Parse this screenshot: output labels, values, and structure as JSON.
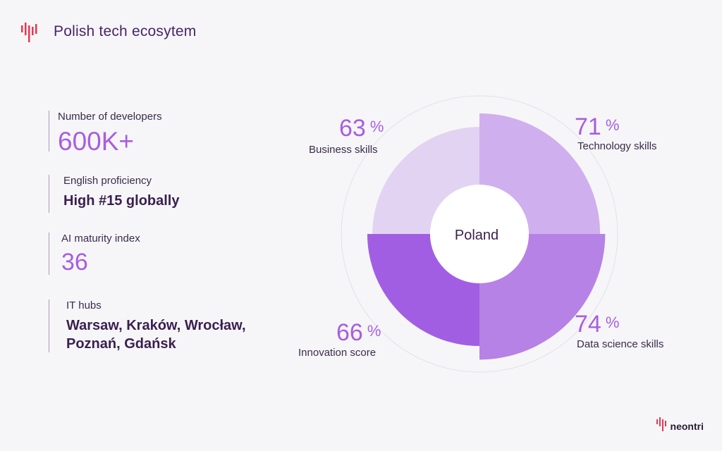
{
  "header": {
    "title": "Polish tech ecosytem",
    "accent_color": "#e8374f",
    "icon": "bars-logo-icon"
  },
  "stats": [
    {
      "label": "Number of developers",
      "value": "600K+"
    },
    {
      "label": "English proficiency",
      "value": "High #15 globally"
    },
    {
      "label": "AI maturity index",
      "value": "36"
    },
    {
      "label": "IT hubs",
      "value": "Warsaw, Kraków, Wrocław, Poznań, Gdańsk"
    }
  ],
  "chart_data": {
    "type": "pie",
    "center_label": "Poland",
    "max": 100,
    "segments": [
      {
        "name": "Business skills",
        "value": 63,
        "unit": "%",
        "color": "#e2d3f2"
      },
      {
        "name": "Technology skills",
        "value": 71,
        "unit": "%",
        "color": "#d0afee"
      },
      {
        "name": "Data science skills",
        "value": 74,
        "unit": "%",
        "color": "#b682e6"
      },
      {
        "name": "Innovation score",
        "value": 66,
        "unit": "%",
        "color": "#a25ee3"
      }
    ]
  },
  "brand": {
    "name": "neontri",
    "icon": "bars-logo-icon"
  }
}
